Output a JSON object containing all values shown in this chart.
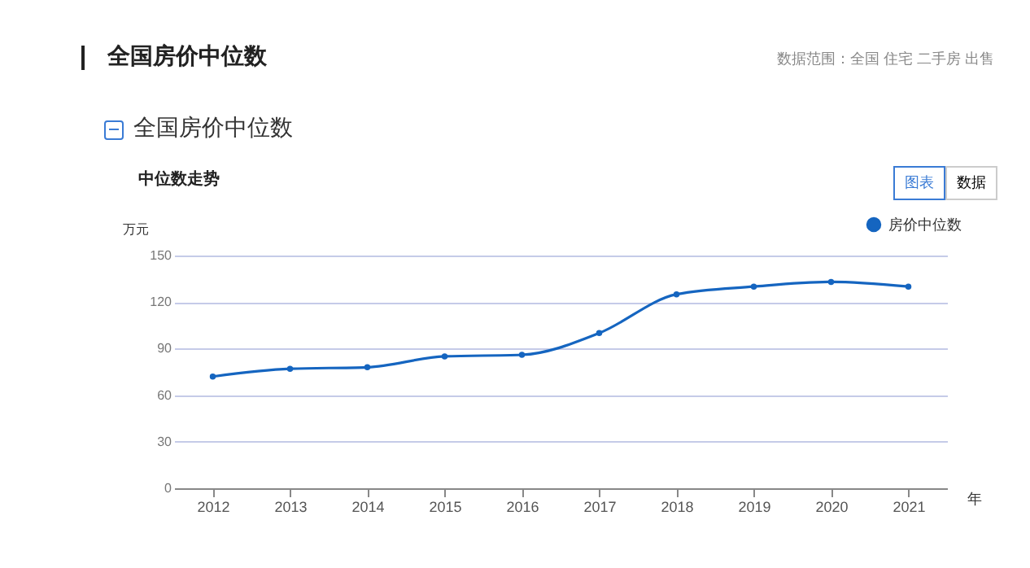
{
  "chart_data": {
    "type": "line",
    "title": "全国房价中位数",
    "annotations": [
      "数据范围：全国 住宅 二手房 出售",
      "全国房价中位数",
      "中位数走势",
      "图表",
      "数据"
    ],
    "xlabel": "年",
    "ylabel": "万元",
    "categories": [
      "2012",
      "2013",
      "2014",
      "2015",
      "2016",
      "2017",
      "2018",
      "2019",
      "2020",
      "2021"
    ],
    "series": [
      {
        "name": "房价中位数",
        "color": "#1565c0",
        "values": [
          72,
          77,
          78,
          85,
          86,
          100,
          125,
          130,
          133,
          130
        ]
      }
    ],
    "ylim": [
      0,
      150
    ],
    "yticks": [
      0,
      30,
      60,
      90,
      120,
      150
    ],
    "grid": "y",
    "legend": "top right",
    "marker": "circle",
    "line_style": "solid"
  }
}
